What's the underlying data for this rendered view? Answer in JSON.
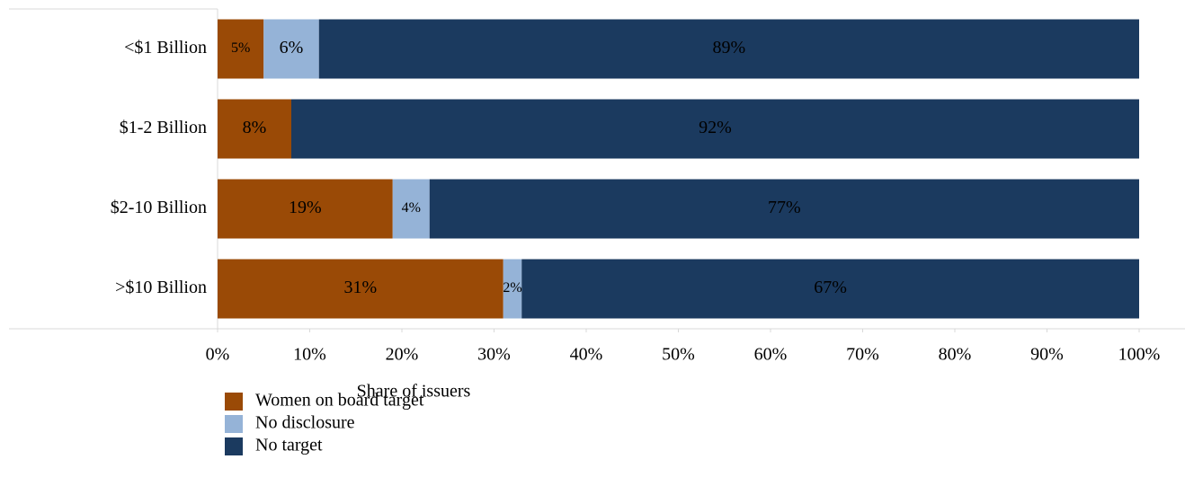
{
  "chart_data": {
    "type": "stacked_barh",
    "categories": [
      "<$1 Billion",
      "$1-2 Billion",
      "$2-10 Billion",
      ">$10 Billion"
    ],
    "series": [
      {
        "name": "Women on board target",
        "color": "#9a4a06",
        "label_color": "#ffffff",
        "values": [
          5,
          8,
          19,
          31
        ],
        "value_labels": [
          "5%",
          "8%",
          "19%",
          "31%"
        ]
      },
      {
        "name": "No disclosure",
        "color": "#95b3d7",
        "label_color": "#000000",
        "values": [
          6,
          null,
          4,
          2
        ],
        "value_labels": [
          "6%",
          null,
          "4%",
          "2%"
        ]
      },
      {
        "name": "No target",
        "color": "#1b3a5f",
        "label_color": "#ffffff",
        "values": [
          89,
          92,
          77,
          67
        ],
        "value_labels": [
          "89%",
          "92%",
          "77%",
          "67%"
        ]
      }
    ],
    "xlabel": "Share of issuers",
    "xlim": [
      0,
      100
    ],
    "xticks": [
      {
        "value": 0,
        "label": "0%"
      },
      {
        "value": 10,
        "label": "10%"
      },
      {
        "value": 20,
        "label": "20%"
      },
      {
        "value": 30,
        "label": "30%"
      },
      {
        "value": 40,
        "label": "40%"
      },
      {
        "value": 50,
        "label": "50%"
      },
      {
        "value": 60,
        "label": "60%"
      },
      {
        "value": 70,
        "label": "70%"
      },
      {
        "value": 80,
        "label": "80%"
      },
      {
        "value": 90,
        "label": "90%"
      },
      {
        "value": 100,
        "label": "100%"
      }
    ],
    "legend": "bottom-left"
  }
}
